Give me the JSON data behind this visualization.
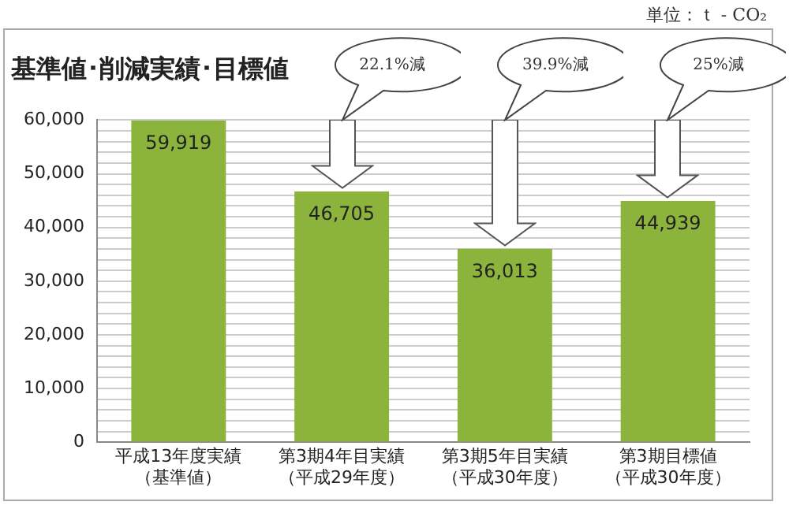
{
  "chart_data": {
    "type": "bar",
    "title": "基準値･削減実績･目標値",
    "categories": [
      "平成13年度実績（基準値）",
      "第3期4年目実績（平成29年度）",
      "第3期5年目実績（平成30年度）",
      "第3期目標値（平成30年度）"
    ],
    "values": [
      59919,
      46705,
      36013,
      44939
    ],
    "color": "#8cb43c",
    "value_labels": [
      "59,919",
      "46,705",
      "36,013",
      "44,939"
    ],
    "ylim": [
      0,
      60000
    ],
    "yticks": [
      {
        "value": 0,
        "label": "0"
      },
      {
        "value": 2000,
        "label": null
      },
      {
        "value": 4000,
        "label": null
      },
      {
        "value": 6000,
        "label": null
      },
      {
        "value": 8000,
        "label": null
      },
      {
        "value": 10000,
        "label": "10,000"
      },
      {
        "value": 12000,
        "label": null
      },
      {
        "value": 14000,
        "label": null
      },
      {
        "value": 16000,
        "label": null
      },
      {
        "value": 18000,
        "label": null
      },
      {
        "value": 20000,
        "label": "20,000"
      },
      {
        "value": 22000,
        "label": null
      },
      {
        "value": 24000,
        "label": null
      },
      {
        "value": 26000,
        "label": null
      },
      {
        "value": 28000,
        "label": null
      },
      {
        "value": 30000,
        "label": "30,000"
      },
      {
        "value": 32000,
        "label": null
      },
      {
        "value": 34000,
        "label": null
      },
      {
        "value": 36000,
        "label": null
      },
      {
        "value": 38000,
        "label": null
      },
      {
        "value": 40000,
        "label": "40,000"
      },
      {
        "value": 42000,
        "label": null
      },
      {
        "value": 44000,
        "label": null
      },
      {
        "value": 46000,
        "label": null
      },
      {
        "value": 48000,
        "label": null
      },
      {
        "value": 50000,
        "label": "50,000"
      },
      {
        "value": 52000,
        "label": null
      },
      {
        "value": 54000,
        "label": null
      },
      {
        "value": 56000,
        "label": null
      },
      {
        "value": 58000,
        "label": null
      },
      {
        "value": 60000,
        "label": "60,000"
      }
    ],
    "grid": "y",
    "legend": false,
    "annotations": [
      "単位：ｔ - CO₂",
      "22.1%減",
      "39.9%減",
      "25%減"
    ]
  }
}
